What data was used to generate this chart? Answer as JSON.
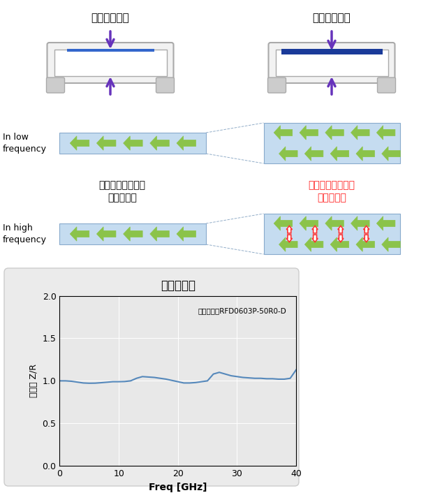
{
  "title_thin": "抜抗膜：薄膜",
  "title_thick": "抜抗膜：厚膜",
  "label_low_freq": "In low\nfrequency",
  "label_high_freq": "In high\nfrequency",
  "label_thin_effect_l1": "表皮効果の影響を",
  "label_thin_effect_l2": "受けにくい",
  "label_thick_effect_l1": "表皮効果の影響を",
  "label_thick_effect_l2": "受けやすい",
  "chart_title": "高周波特性",
  "chart_annotation": "参考品種　RFD0603P-50R0-D",
  "xlabel": "Freq [GHz]",
  "ylabel": "抜抗比 Z/R",
  "color_arrow_green": "#8BC34A",
  "color_arrow_red": "#FF3333",
  "color_box_blue": "#C5DCF0",
  "color_resistor_body": "#FFFFFF",
  "color_resistor_border": "#B0B0B0",
  "color_resistor_cap": "#C0C0C0",
  "color_film_thin": "#3366CC",
  "color_film_thick": "#1A3A99",
  "color_purple_arrow": "#6633BB",
  "color_line": "#5588BB",
  "bg_chart": "#E8E8E8",
  "bg_panel": "#EBEBEB",
  "ylim": [
    0.0,
    2.0
  ],
  "xlim": [
    0,
    40
  ],
  "yticks": [
    0.0,
    0.5,
    1.0,
    1.5,
    2.0
  ],
  "xticks": [
    0,
    10,
    20,
    30,
    40
  ],
  "freq_data": [
    0,
    1,
    2,
    3,
    4,
    5,
    6,
    7,
    8,
    9,
    10,
    11,
    12,
    13,
    14,
    15,
    16,
    17,
    18,
    19,
    20,
    21,
    22,
    23,
    24,
    25,
    26,
    27,
    28,
    29,
    30,
    31,
    32,
    33,
    34,
    35,
    36,
    37,
    38,
    39,
    40
  ],
  "zr_data": [
    1.0,
    1.0,
    0.995,
    0.985,
    0.975,
    0.972,
    0.973,
    0.978,
    0.984,
    0.99,
    0.99,
    0.992,
    1.0,
    1.03,
    1.05,
    1.045,
    1.04,
    1.03,
    1.02,
    1.005,
    0.99,
    0.975,
    0.975,
    0.98,
    0.99,
    1.0,
    1.08,
    1.1,
    1.08,
    1.06,
    1.05,
    1.04,
    1.035,
    1.03,
    1.03,
    1.025,
    1.025,
    1.02,
    1.02,
    1.03,
    1.13
  ],
  "thick_effect_color": "#FF2222"
}
